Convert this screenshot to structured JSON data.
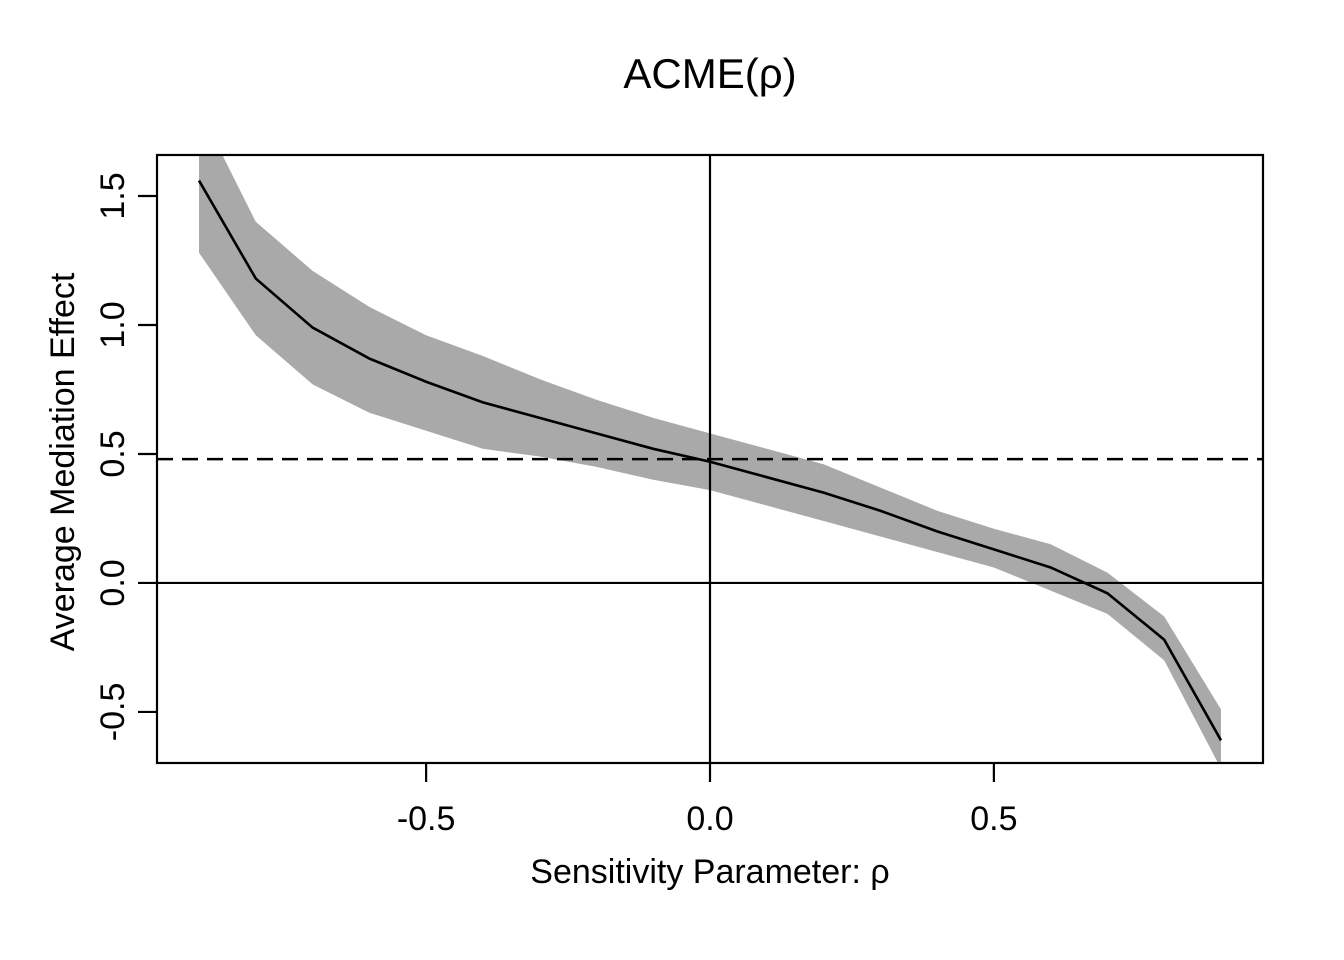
{
  "chart_data": {
    "type": "line",
    "title": "ACME(ρ)",
    "xlabel": "Sensitivity Parameter: ρ",
    "ylabel": "Average Mediation Effect",
    "x": [
      -0.9,
      -0.8,
      -0.7,
      -0.6,
      -0.5,
      -0.4,
      -0.3,
      -0.2,
      -0.1,
      0.0,
      0.1,
      0.2,
      0.3,
      0.4,
      0.5,
      0.6,
      0.7,
      0.8,
      0.9
    ],
    "series": [
      {
        "name": "ACME point estimate",
        "values": [
          1.56,
          1.18,
          0.99,
          0.87,
          0.78,
          0.7,
          0.64,
          0.58,
          0.52,
          0.47,
          0.41,
          0.35,
          0.28,
          0.2,
          0.13,
          0.06,
          -0.04,
          -0.22,
          -0.61
        ]
      }
    ],
    "confidence_band": {
      "name": "confidence interval",
      "lower": [
        1.28,
        0.96,
        0.77,
        0.66,
        0.59,
        0.52,
        0.49,
        0.45,
        0.4,
        0.36,
        0.3,
        0.24,
        0.18,
        0.12,
        0.06,
        -0.03,
        -0.12,
        -0.3,
        -0.72
      ],
      "upper": [
        1.84,
        1.4,
        1.21,
        1.07,
        0.96,
        0.88,
        0.79,
        0.71,
        0.64,
        0.58,
        0.52,
        0.46,
        0.37,
        0.28,
        0.21,
        0.15,
        0.04,
        -0.13,
        -0.49
      ],
      "color": "#a9a9a9"
    },
    "reference_lines": {
      "hline_solid_y": 0.0,
      "vline_solid_x": 0.0,
      "hline_dashed_y": 0.48
    },
    "x_tick_values": [
      -0.5,
      0.0,
      0.5
    ],
    "x_tick_labels": [
      "-0.5",
      "0.0",
      "0.5"
    ],
    "y_tick_values": [
      1.5,
      1.0,
      0.5,
      0.0,
      -0.5
    ],
    "y_tick_labels": [
      "1.5",
      "1.0",
      "0.5",
      "0.0",
      "-0.5"
    ],
    "xlim": [
      -0.974,
      0.974
    ],
    "ylim": [
      -0.698,
      1.659
    ],
    "grid": false,
    "legend_position": "none",
    "line_color": "#000000",
    "frame_color": "#000000",
    "background_color": "#ffffff"
  }
}
